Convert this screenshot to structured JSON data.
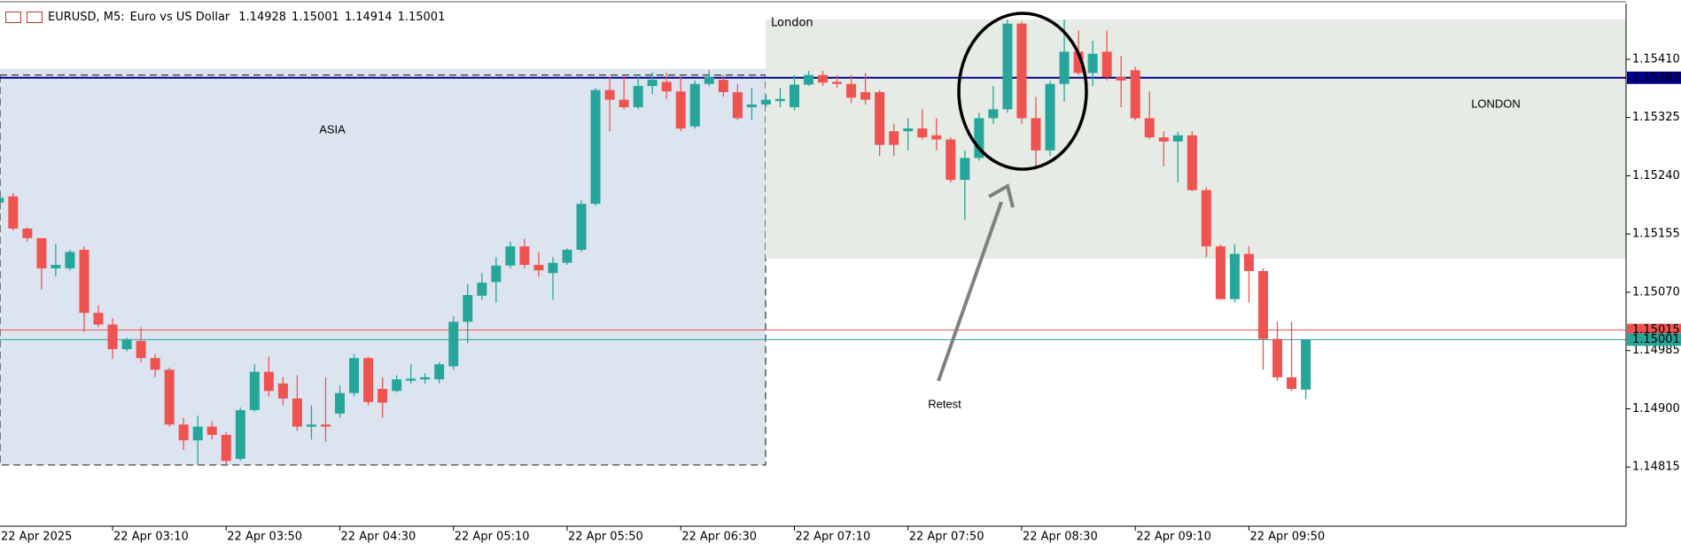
{
  "chart_data": {
    "type": "candlestick",
    "header": {
      "symbol": "EURUSD, M5:",
      "description": "Euro vs US Dollar",
      "ohlc": [
        1.14928,
        1.15001,
        1.14914,
        1.15001
      ]
    },
    "categories": [
      "22 Apr 2025",
      null,
      null,
      null,
      null,
      null,
      null,
      null,
      "22 Apr 03:10",
      null,
      null,
      null,
      null,
      null,
      null,
      null,
      "22 Apr 03:50",
      null,
      null,
      null,
      null,
      null,
      null,
      null,
      "22 Apr 04:30",
      null,
      null,
      null,
      null,
      null,
      null,
      null,
      "22 Apr 05:10",
      null,
      null,
      null,
      null,
      null,
      null,
      null,
      "22 Apr 05:50",
      null,
      null,
      null,
      null,
      null,
      null,
      null,
      "22 Apr 06:30",
      null,
      null,
      null,
      null,
      null,
      null,
      null,
      "22 Apr 07:10",
      null,
      null,
      null,
      null,
      null,
      null,
      null,
      "22 Apr 07:50",
      null,
      null,
      null,
      null,
      null,
      null,
      null,
      "22 Apr 08:30",
      null,
      null,
      null,
      null,
      null,
      null,
      null,
      "22 Apr 09:10",
      null,
      null,
      null,
      null,
      null,
      null,
      null,
      "22 Apr 09:50",
      null,
      null,
      null,
      null
    ],
    "open": [
      1.15201,
      1.1521,
      1.15163,
      1.15149,
      1.15105,
      1.15105,
      1.15132,
      1.1504,
      1.15023,
      1.14987,
      1.14999,
      1.14974,
      1.14957,
      1.14877,
      1.14854,
      1.14874,
      1.14862,
      1.14827,
      1.14898,
      1.14954,
      1.14937,
      1.14915,
      1.14874,
      1.14877,
      1.14893,
      1.14923,
      1.14974,
      1.14929,
      1.14926,
      1.14941,
      1.14943,
      1.14943,
      1.14962,
      1.15027,
      1.15065,
      1.15085,
      1.15109,
      1.15137,
      1.1511,
      1.15098,
      1.15113,
      1.15132,
      1.15199,
      1.15365,
      1.15351,
      1.1534,
      1.15371,
      1.15377,
      1.15363,
      1.15312,
      1.15374,
      1.1538,
      1.15362,
      1.1534,
      1.15344,
      1.15349,
      1.1534,
      1.15373,
      1.15387,
      1.15377,
      1.15374,
      1.15362,
      1.15362,
      1.15305,
      1.15305,
      1.15309,
      1.15299,
      1.15293,
      1.15234,
      1.15266,
      1.15324,
      1.15337,
      1.15462,
      1.15324,
      1.15277,
      1.15374,
      1.15421,
      1.1539,
      1.15421,
      1.15384,
      1.15394,
      1.15324,
      1.15296,
      1.1529,
      1.15299,
      1.15219,
      1.15137,
      1.1506,
      1.15126,
      1.15101,
      1.15002,
      1.14946,
      1.14928
    ],
    "high": [
      1.15215,
      1.15215,
      1.15165,
      1.15149,
      1.15141,
      1.15132,
      1.15137,
      1.15051,
      1.15032,
      1.15004,
      1.15019,
      1.1498,
      1.1496,
      1.14887,
      1.1489,
      1.14882,
      1.14866,
      1.14902,
      1.14965,
      1.14976,
      1.14946,
      1.14949,
      1.14905,
      1.14946,
      1.14934,
      1.1498,
      1.14976,
      1.14946,
      1.14949,
      1.14965,
      1.14952,
      1.14968,
      1.15035,
      1.15082,
      1.15098,
      1.15121,
      1.15144,
      1.15148,
      1.15129,
      1.15121,
      1.15134,
      1.15204,
      1.15368,
      1.15384,
      1.15387,
      1.15384,
      1.15391,
      1.1539,
      1.15384,
      1.15379,
      1.15394,
      1.15387,
      1.15374,
      1.15368,
      1.15359,
      1.15368,
      1.15387,
      1.15393,
      1.15393,
      1.15387,
      1.15387,
      1.1539,
      1.15365,
      1.15316,
      1.15324,
      1.15337,
      1.15324,
      1.15296,
      1.15277,
      1.15332,
      1.15371,
      1.15468,
      1.15465,
      1.15355,
      1.15379,
      1.15468,
      1.15452,
      1.15437,
      1.15452,
      1.15415,
      1.15399,
      1.15363,
      1.15305,
      1.15304,
      1.15305,
      1.15223,
      1.1514,
      1.1514,
      1.15137,
      1.15105,
      1.15027,
      1.15027,
      1.15001
    ],
    "low": [
      1.15199,
      1.1516,
      1.15144,
      1.15074,
      1.15093,
      1.15102,
      1.15012,
      1.15019,
      1.14973,
      1.14984,
      1.14968,
      1.14946,
      1.14874,
      1.1484,
      1.14819,
      1.14855,
      1.14819,
      1.14824,
      1.14896,
      1.14918,
      1.14905,
      1.14868,
      1.14855,
      1.14852,
      1.14887,
      1.14918,
      1.14905,
      1.14887,
      1.14924,
      1.14937,
      1.14937,
      1.14937,
      1.14957,
      1.14996,
      1.15059,
      1.15055,
      1.15105,
      1.15105,
      1.15093,
      1.15059,
      1.1511,
      1.15129,
      1.15196,
      1.15305,
      1.15337,
      1.15337,
      1.15359,
      1.15352,
      1.15305,
      1.15309,
      1.15371,
      1.15355,
      1.15321,
      1.15321,
      1.1534,
      1.1534,
      1.15335,
      1.15371,
      1.15371,
      1.15368,
      1.15346,
      1.15344,
      1.15269,
      1.15269,
      1.15277,
      1.15293,
      1.15277,
      1.1523,
      1.15176,
      1.15262,
      1.15316,
      1.15332,
      1.15316,
      1.15249,
      1.15269,
      1.15348,
      1.15387,
      1.15371,
      1.15379,
      1.1534,
      1.15321,
      1.15293,
      1.15254,
      1.1523,
      1.15218,
      1.15121,
      1.15059,
      1.15055,
      1.15055,
      1.14957,
      1.14941,
      1.14926,
      1.14914
    ],
    "close": [
      1.15208,
      1.15163,
      1.15149,
      1.15105,
      1.1511,
      1.15129,
      1.1504,
      1.15023,
      1.14987,
      1.15001,
      1.14974,
      1.14957,
      1.14877,
      1.14854,
      1.14874,
      1.14862,
      1.14824,
      1.14898,
      1.14954,
      1.14926,
      1.14915,
      1.14874,
      1.14877,
      1.14874,
      1.14923,
      1.14974,
      1.1491,
      1.14909,
      1.14943,
      1.14944,
      1.14946,
      1.14965,
      1.15027,
      1.15066,
      1.15084,
      1.15109,
      1.15137,
      1.1511,
      1.15102,
      1.15113,
      1.15132,
      1.15199,
      1.15365,
      1.15351,
      1.1534,
      1.15371,
      1.1538,
      1.15363,
      1.15309,
      1.15374,
      1.15384,
      1.15362,
      1.15324,
      1.15344,
      1.15351,
      1.15352,
      1.15373,
      1.15387,
      1.15376,
      1.15374,
      1.15354,
      1.15351,
      1.15285,
      1.15285,
      1.15309,
      1.15296,
      1.15293,
      1.15234,
      1.15266,
      1.15324,
      1.15337,
      1.15462,
      1.15324,
      1.15277,
      1.15374,
      1.15421,
      1.1539,
      1.15418,
      1.15384,
      1.15379,
      1.15324,
      1.15296,
      1.1529,
      1.15299,
      1.15219,
      1.15137,
      1.1506,
      1.15126,
      1.15101,
      1.15002,
      1.14946,
      1.14929,
      1.15001
    ],
    "up_color": "#26a69a",
    "down_color": "#ef5350",
    "ylim": [
      1.1473,
      1.1549
    ],
    "yticks": [
      1.14815,
      {
        "value": 1.149,
        "label": "1.14900"
      },
      1.14985,
      {
        "value": 1.1507,
        "label": "1.15070"
      },
      1.15155,
      {
        "value": 1.1524,
        "label": "1.15240"
      },
      1.15325,
      {
        "value": 1.1541,
        "label": "1.15410"
      }
    ],
    "levels": [
      {
        "value": 1.15383,
        "color": "#00008b"
      },
      {
        "value": 1.15015,
        "color": "#ef5350"
      },
      {
        "value": 1.15001,
        "color": "#26a69a"
      }
    ],
    "zones": [
      {
        "label": "ASIA",
        "top": 1.15396,
        "bottom": 1.14818,
        "color": "#dce4f0"
      },
      {
        "label": "LONDON",
        "tag": "London",
        "top": 1.15468,
        "bottom": 1.15119,
        "color": "#e6ebe5"
      }
    ],
    "annotations": [
      "Retest"
    ]
  }
}
